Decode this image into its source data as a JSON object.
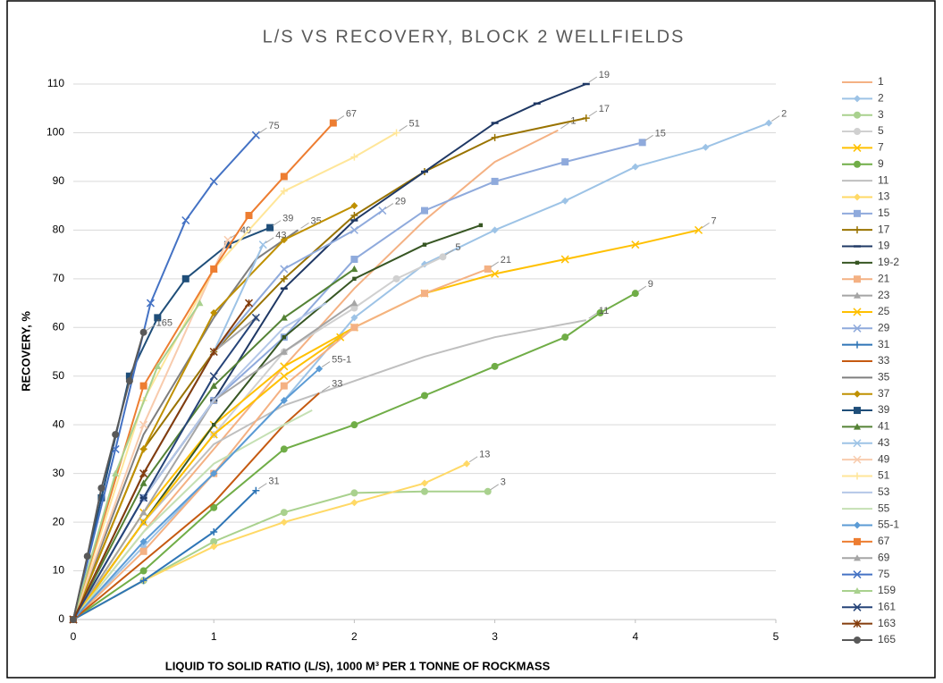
{
  "chart_data": {
    "type": "line",
    "title": "L/S VS RECOVERY, BLOCK 2 WELLFIELDS",
    "xlabel": "LIQUID TO SOLID RATIO (L/S), 1000 M³ PER 1 TONNE OF ROCKMASS",
    "ylabel": "RECOVERY, %",
    "xlim": [
      0,
      5
    ],
    "xticks": [
      0,
      1,
      2,
      3,
      4,
      5
    ],
    "ylim": [
      0,
      110
    ],
    "yticks": [
      0,
      10,
      20,
      30,
      40,
      50,
      60,
      70,
      80,
      90,
      100,
      110
    ],
    "grid": true,
    "legend": "right",
    "series": [
      {
        "name": "1",
        "color": "#f4b183",
        "marker": "none",
        "end_label": true,
        "x": [
          0,
          0.5,
          1,
          1.5,
          2,
          2.5,
          3,
          3.45
        ],
        "values": [
          0,
          18,
          35,
          52,
          68,
          82,
          94,
          100.5
        ]
      },
      {
        "name": "2",
        "color": "#9dc3e6",
        "marker": "diamond",
        "end_label": true,
        "x": [
          0,
          0.5,
          1,
          1.5,
          2,
          2.5,
          3,
          3.5,
          4,
          4.5,
          4.95
        ],
        "values": [
          0,
          15,
          30,
          45,
          62,
          73,
          80,
          86,
          93,
          97,
          102
        ]
      },
      {
        "name": "3",
        "color": "#a9d18e",
        "marker": "circle",
        "end_label": true,
        "x": [
          0,
          0.5,
          1,
          1.5,
          2,
          2.5,
          2.95
        ],
        "values": [
          0,
          8,
          16,
          22,
          26,
          26.3,
          26.3
        ]
      },
      {
        "name": "5",
        "color": "#d0d0d0",
        "marker": "circle",
        "end_label": true,
        "x": [
          0,
          0.5,
          1,
          1.5,
          2,
          2.3,
          2.63
        ],
        "values": [
          0,
          20,
          38,
          55,
          64,
          70,
          74.5
        ]
      },
      {
        "name": "7",
        "color": "#ffc000",
        "marker": "x",
        "end_label": true,
        "x": [
          0,
          0.5,
          1,
          1.5,
          2,
          2.5,
          3,
          3.5,
          4,
          4.45
        ],
        "values": [
          0,
          22,
          40,
          52,
          60,
          67,
          71,
          74,
          77,
          80
        ]
      },
      {
        "name": "9",
        "color": "#70ad47",
        "marker": "circle",
        "end_label": true,
        "x": [
          0,
          0.5,
          1,
          1.5,
          2,
          2.5,
          3,
          3.5,
          3.75,
          4
        ],
        "values": [
          0,
          10,
          23,
          35,
          40,
          46,
          52,
          58,
          63,
          67
        ]
      },
      {
        "name": "11",
        "color": "#bfbfbf",
        "marker": "none",
        "end_label": true,
        "x": [
          0,
          0.5,
          1,
          1.5,
          2,
          2.5,
          3,
          3.65
        ],
        "values": [
          0,
          20,
          36,
          44,
          49,
          54,
          58,
          61.5
        ]
      },
      {
        "name": "13",
        "color": "#ffd966",
        "marker": "diamond",
        "end_label": true,
        "x": [
          0,
          0.5,
          1,
          1.5,
          2,
          2.5,
          2.8
        ],
        "values": [
          0,
          8,
          15,
          20,
          24,
          28,
          32
        ]
      },
      {
        "name": "15",
        "color": "#8faadc",
        "marker": "square",
        "end_label": true,
        "x": [
          0,
          0.5,
          1,
          1.5,
          2,
          2.5,
          3,
          3.5,
          4.05
        ],
        "values": [
          0,
          25,
          45,
          58,
          74,
          84,
          90,
          94,
          98
        ]
      },
      {
        "name": "17",
        "color": "#997300",
        "marker": "plus",
        "end_label": true,
        "x": [
          0,
          0.5,
          1,
          1.5,
          2,
          2.5,
          3,
          3.65
        ],
        "values": [
          0,
          35,
          55,
          70,
          83,
          92,
          99,
          103
        ]
      },
      {
        "name": "19",
        "color": "#1f3864",
        "marker": "dash",
        "end_label": true,
        "x": [
          0,
          0.5,
          1,
          1.5,
          2,
          2.5,
          3,
          3.3,
          3.65
        ],
        "values": [
          0,
          25,
          45,
          68,
          82,
          92,
          102,
          106,
          110
        ]
      },
      {
        "name": "19-2",
        "color": "#375623",
        "marker": "square-small",
        "end_label": false,
        "x": [
          0,
          0.5,
          1,
          1.5,
          2,
          2.5,
          2.9
        ],
        "values": [
          0,
          20,
          40,
          58,
          70,
          77,
          81
        ]
      },
      {
        "name": "21",
        "color": "#f4b183",
        "marker": "square",
        "end_label": true,
        "x": [
          0,
          0.5,
          1,
          1.5,
          2,
          2.5,
          2.95
        ],
        "values": [
          0,
          14,
          30,
          48,
          60,
          67,
          72
        ]
      },
      {
        "name": "23",
        "color": "#a5a5a5",
        "marker": "triangle",
        "end_label": false,
        "x": [
          0,
          0.5,
          1,
          1.5,
          2
        ],
        "values": [
          0,
          22,
          45,
          55,
          65
        ]
      },
      {
        "name": "25",
        "color": "#ffc000",
        "marker": "x",
        "end_label": false,
        "x": [
          0,
          0.5,
          1,
          1.5,
          1.9
        ],
        "values": [
          0,
          20,
          38,
          50,
          58
        ]
      },
      {
        "name": "29",
        "color": "#8faadc",
        "marker": "x",
        "end_label": true,
        "x": [
          0,
          0.5,
          1,
          1.5,
          2,
          2.2
        ],
        "values": [
          0,
          30,
          55,
          72,
          80,
          84
        ]
      },
      {
        "name": "31",
        "color": "#2e75b6",
        "marker": "plus",
        "end_label": true,
        "x": [
          0,
          0.5,
          1,
          1.3
        ],
        "values": [
          0,
          8,
          18,
          26.5
        ]
      },
      {
        "name": "33",
        "color": "#c55a11",
        "marker": "none",
        "end_label": true,
        "x": [
          0,
          0.5,
          1,
          1.5,
          1.75
        ],
        "values": [
          0,
          12,
          24,
          40,
          46.5
        ]
      },
      {
        "name": "35",
        "color": "#7f7f7f",
        "marker": "none",
        "end_label": true,
        "x": [
          0,
          0.5,
          1,
          1.3,
          1.6
        ],
        "values": [
          0,
          38,
          62,
          74,
          80
        ]
      },
      {
        "name": "37",
        "color": "#bf9000",
        "marker": "diamond",
        "end_label": false,
        "x": [
          0,
          0.5,
          1,
          1.5,
          2
        ],
        "values": [
          0,
          35,
          63,
          78,
          85
        ]
      },
      {
        "name": "39",
        "color": "#1f4e79",
        "marker": "square",
        "end_label": true,
        "x": [
          0,
          0.2,
          0.4,
          0.6,
          0.8,
          1.1,
          1.4
        ],
        "values": [
          0,
          25,
          50,
          62,
          70,
          77,
          80.5
        ]
      },
      {
        "name": "41",
        "color": "#548235",
        "marker": "triangle",
        "end_label": false,
        "x": [
          0,
          0.5,
          1,
          1.5,
          2
        ],
        "values": [
          0,
          28,
          48,
          62,
          72
        ]
      },
      {
        "name": "43",
        "color": "#9dc3e6",
        "marker": "x",
        "end_label": true,
        "x": [
          0,
          0.5,
          1,
          1.35
        ],
        "values": [
          0,
          30,
          55,
          77
        ]
      },
      {
        "name": "49",
        "color": "#f8cbad",
        "marker": "x",
        "end_label": true,
        "x": [
          0,
          0.5,
          1,
          1.1
        ],
        "values": [
          0,
          40,
          72,
          78
        ]
      },
      {
        "name": "51",
        "color": "#ffe699",
        "marker": "plus",
        "end_label": true,
        "x": [
          0,
          0.5,
          1,
          1.5,
          2,
          2.3
        ],
        "values": [
          0,
          45,
          72,
          88,
          95,
          100
        ]
      },
      {
        "name": "53",
        "color": "#b4c7e7",
        "marker": "none",
        "end_label": false,
        "x": [
          0,
          0.5,
          1,
          1.5,
          1.8
        ],
        "values": [
          0,
          25,
          45,
          60,
          65
        ]
      },
      {
        "name": "55",
        "color": "#c5e0b4",
        "marker": "none",
        "end_label": false,
        "x": [
          0,
          0.5,
          1,
          1.5,
          1.7
        ],
        "values": [
          0,
          18,
          32,
          40,
          43
        ]
      },
      {
        "name": "55-1",
        "color": "#5b9bd5",
        "marker": "diamond",
        "end_label": true,
        "x": [
          0,
          0.5,
          1,
          1.5,
          1.75
        ],
        "values": [
          0,
          16,
          30,
          45,
          51.5
        ]
      },
      {
        "name": "67",
        "color": "#ed7d31",
        "marker": "square",
        "end_label": true,
        "x": [
          0,
          0.5,
          1,
          1.25,
          1.5,
          1.85
        ],
        "values": [
          0,
          48,
          72,
          83,
          91,
          102
        ]
      },
      {
        "name": "69",
        "color": "#a5a5a5",
        "marker": "triangle",
        "end_label": false,
        "x": [
          0,
          0.5,
          1,
          1.3
        ],
        "values": [
          0,
          30,
          55,
          62
        ]
      },
      {
        "name": "75",
        "color": "#4472c4",
        "marker": "x",
        "end_label": true,
        "x": [
          0,
          0.3,
          0.55,
          0.8,
          1,
          1.3
        ],
        "values": [
          0,
          35,
          65,
          82,
          90,
          99.5
        ]
      },
      {
        "name": "159",
        "color": "#a9d18e",
        "marker": "triangle",
        "end_label": false,
        "x": [
          0,
          0.3,
          0.6,
          0.9
        ],
        "values": [
          0,
          30,
          52,
          65
        ]
      },
      {
        "name": "161",
        "color": "#264478",
        "marker": "x",
        "end_label": false,
        "x": [
          0,
          0.5,
          1,
          1.3
        ],
        "values": [
          0,
          25,
          50,
          62
        ]
      },
      {
        "name": "163",
        "color": "#843c0c",
        "marker": "star",
        "end_label": false,
        "x": [
          0,
          0.5,
          1,
          1.25
        ],
        "values": [
          0,
          30,
          55,
          65
        ]
      },
      {
        "name": "165",
        "color": "#595959",
        "marker": "circle",
        "end_label": true,
        "x": [
          0,
          0.1,
          0.2,
          0.3,
          0.4,
          0.5
        ],
        "values": [
          0,
          13,
          27,
          38,
          49,
          59
        ]
      }
    ]
  }
}
